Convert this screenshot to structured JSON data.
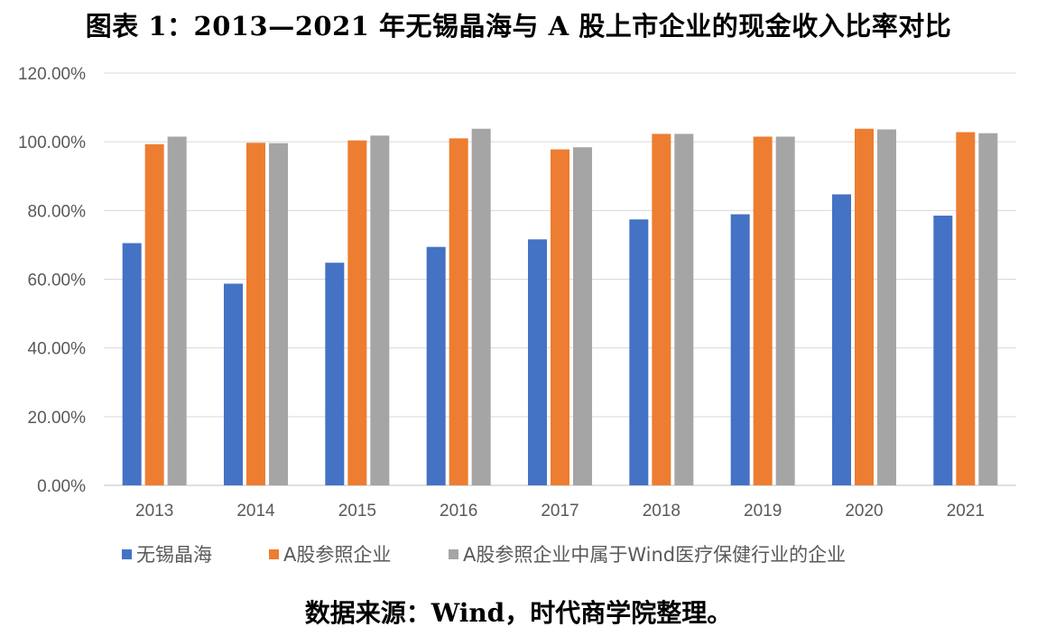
{
  "chart_data": {
    "type": "bar",
    "title": "图表 1：2013—2021 年无锡晶海与 A 股上市企业的现金收入比率对比",
    "categories": [
      "2013",
      "2014",
      "2015",
      "2016",
      "2017",
      "2018",
      "2019",
      "2020",
      "2021"
    ],
    "series": [
      {
        "name": "无锡晶海",
        "color": "#4472C4",
        "values": [
          70.5,
          58.7,
          64.8,
          69.4,
          71.6,
          77.4,
          78.9,
          84.7,
          78.5
        ]
      },
      {
        "name": "A股参照企业",
        "color": "#ED7D31",
        "values": [
          99.3,
          99.7,
          100.4,
          101.0,
          97.8,
          102.3,
          101.5,
          103.8,
          102.8
        ]
      },
      {
        "name": "A股参照企业中属于Wind医疗保健行业的企业",
        "color": "#A5A5A5",
        "values": [
          101.5,
          99.6,
          101.8,
          103.8,
          98.4,
          102.3,
          101.5,
          103.6,
          102.5
        ]
      }
    ],
    "y_ticks": [
      "0.00%",
      "20.00%",
      "40.00%",
      "60.00%",
      "80.00%",
      "100.00%",
      "120.00%"
    ],
    "ylim": [
      0,
      120
    ],
    "grid": true,
    "legend": "bottom",
    "source": "数据来源：Wind，时代商学院整理。"
  }
}
